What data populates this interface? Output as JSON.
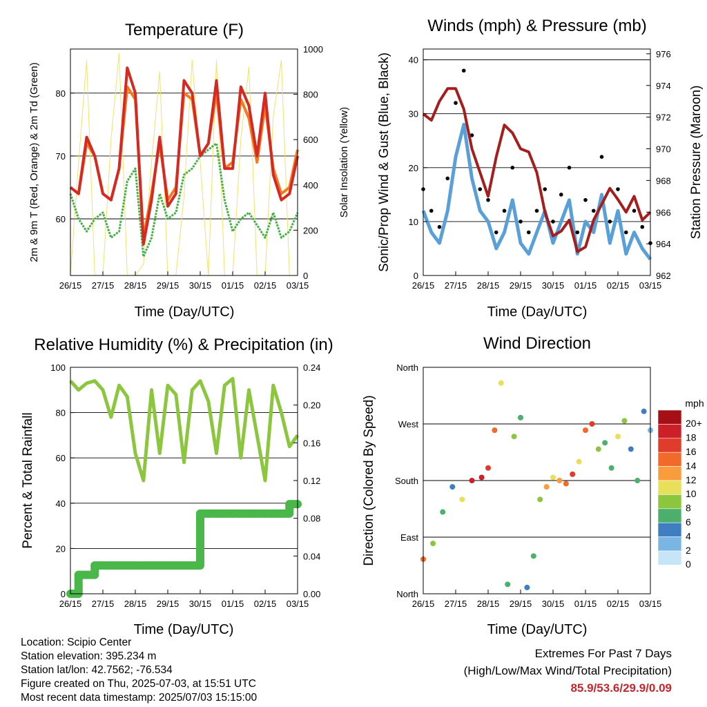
{
  "xticks": [
    "26/15",
    "27/15",
    "28/15",
    "29/15",
    "30/15",
    "01/15",
    "02/15",
    "03/15"
  ],
  "xlabel": "Time (Day/UTC)",
  "colors": {
    "red": "#d42a24",
    "orange": "#f47a22",
    "green": "#44b044",
    "yellow": "#f5e06a",
    "maroon": "#a51e1e",
    "black": "#000000",
    "blue": "#5aa0d8",
    "rh": "#8cc63f",
    "rain": "#49b749"
  },
  "panels": {
    "temp": {
      "title": "Temperature (F)",
      "ylabel": "2m & 9m T (Red, Orange) & 2m Td (Green)",
      "y2label": "Solar Insolation (Yellow)"
    },
    "wind": {
      "title": "Winds (mph) & Pressure (mb)",
      "ylabel": "Sonic/Prop Wind & Gust (Blue, Black)",
      "y2label": "Station Pressure (Maroon)"
    },
    "rh": {
      "title": "Relative Humidity (%) & Precipitation (in)",
      "ylabel": "Percent & Total Rainfall"
    },
    "dir": {
      "title": "Wind Direction",
      "ylabel": "Direction (Colored By Speed)",
      "ticks": [
        "North",
        "East",
        "South",
        "West",
        "North"
      ],
      "legend_title": "mph",
      "legend_labels": [
        "20+",
        "18",
        "16",
        "14",
        "12",
        "10",
        "8",
        "6",
        "4",
        "2",
        "0"
      ],
      "legend_colors": [
        "#a50f15",
        "#cb2027",
        "#e03b2b",
        "#f26a2a",
        "#f99d3c",
        "#e8e05a",
        "#8cc63f",
        "#4caf6c",
        "#3f7fc1",
        "#7ab6e4",
        "#c6e6f8"
      ]
    }
  },
  "info": {
    "location": "Location: Scipio Center",
    "elevation": "Station elevation: 395.234 m",
    "latlon": "Station lat/lon: 42.7562; -76.534",
    "created": "Figure created on Thu, 2025-07-03, at 15:51 UTC",
    "recent": "Most recent data timestamp: 2025/07/03 15:15:00"
  },
  "extremes": {
    "line1": "Extremes For Past 7 Days",
    "line2": "(High/Low/Max Wind/Total Precipitation)",
    "values": "85.9/53.6/29.9/0.09"
  },
  "chart_data": [
    {
      "type": "line",
      "title": "Temperature (F)",
      "xlabel": "Time (Day/UTC)",
      "ylabel": "2m & 9m T (Red, Orange) & 2m Td (Green)",
      "y2label": "Solar Insolation (Yellow)",
      "x": [
        0,
        0.25,
        0.5,
        0.75,
        1,
        1.25,
        1.5,
        1.75,
        2,
        2.25,
        2.5,
        2.75,
        3,
        3.25,
        3.5,
        3.75,
        4,
        4.25,
        4.5,
        4.75,
        5,
        5.25,
        5.5,
        5.75,
        6,
        6.25,
        6.5,
        6.75,
        7
      ],
      "ylim": [
        51,
        87
      ],
      "yticks": [
        60,
        70,
        80
      ],
      "y2lim": [
        0,
        1000
      ],
      "y2ticks": [
        0,
        200,
        400,
        600,
        800,
        1000
      ],
      "series": [
        {
          "name": "2m T",
          "color": "red",
          "axis": "left",
          "values": [
            65,
            64,
            73,
            70,
            64,
            63,
            68,
            84,
            80,
            56,
            63,
            73,
            62,
            64,
            82,
            80,
            70,
            72,
            82,
            68,
            68,
            81,
            78,
            70,
            80,
            67,
            63,
            64,
            70
          ]
        },
        {
          "name": "9m T",
          "color": "orange",
          "axis": "left",
          "values": [
            65,
            64,
            72,
            70,
            64,
            63,
            68,
            81,
            79,
            57,
            64,
            72,
            63,
            65,
            80,
            79,
            70,
            72,
            80,
            68,
            69,
            79,
            76,
            69,
            78,
            68,
            64,
            65,
            71
          ]
        },
        {
          "name": "2m Td",
          "color": "green",
          "axis": "left",
          "values": [
            64,
            60,
            58,
            60,
            61,
            57,
            58,
            66,
            68,
            54,
            57,
            64,
            60,
            61,
            67,
            68,
            70,
            71,
            72,
            63,
            58,
            60,
            61,
            59,
            57,
            61,
            57,
            58,
            61
          ]
        },
        {
          "name": "Solar",
          "color": "yellow",
          "axis": "right",
          "values": [
            0,
            500,
            950,
            0,
            0,
            600,
            980,
            0,
            0,
            50,
            500,
            900,
            0,
            0,
            350,
            950,
            500,
            0,
            950,
            0,
            0,
            600,
            920,
            0,
            0,
            700,
            950,
            0,
            0
          ]
        }
      ]
    },
    {
      "type": "scatter",
      "title": "Winds (mph) & Pressure (mb)",
      "xlabel": "Time (Day/UTC)",
      "ylabel": "Sonic/Prop Wind & Gust (Blue, Black)",
      "y2label": "Station Pressure (Maroon)",
      "x": [
        0,
        0.25,
        0.5,
        0.75,
        1,
        1.25,
        1.5,
        1.75,
        2,
        2.25,
        2.5,
        2.75,
        3,
        3.25,
        3.5,
        3.75,
        4,
        4.25,
        4.5,
        4.75,
        5,
        5.25,
        5.5,
        5.75,
        6,
        6.25,
        6.5,
        6.75,
        7
      ],
      "ylim": [
        0,
        42
      ],
      "yticks": [
        0,
        10,
        20,
        30,
        40
      ],
      "y2lim": [
        962,
        976.3
      ],
      "y2ticks": [
        962,
        964,
        966,
        968,
        970,
        972,
        974,
        976
      ],
      "series": [
        {
          "name": "Wind",
          "color": "blue",
          "axis": "left",
          "values": [
            12,
            8,
            6,
            12,
            22,
            28,
            18,
            12,
            10,
            5,
            8,
            14,
            6,
            4,
            8,
            12,
            6,
            10,
            14,
            4,
            10,
            8,
            15,
            6,
            12,
            4,
            8,
            5,
            3
          ]
        },
        {
          "name": "Gust",
          "color": "black",
          "axis": "left",
          "values": [
            16,
            12,
            9,
            18,
            32,
            38,
            26,
            16,
            14,
            8,
            12,
            20,
            10,
            8,
            12,
            16,
            10,
            15,
            20,
            8,
            14,
            12,
            22,
            10,
            16,
            8,
            12,
            9,
            6
          ]
        },
        {
          "name": "Pressure",
          "color": "maroon",
          "axis": "right",
          "values": [
            972.2,
            971.8,
            973.0,
            973.8,
            973.8,
            972.5,
            970.0,
            968.5,
            967.0,
            969.5,
            971.5,
            971.0,
            970.0,
            969.8,
            968.5,
            966.0,
            964.5,
            964.8,
            965.5,
            963.5,
            963.8,
            965.5,
            966.5,
            967.5,
            966.8,
            966.0,
            967.0,
            965.5,
            966.0
          ]
        }
      ]
    },
    {
      "type": "line",
      "title": "Relative Humidity (%) & Precipitation (in)",
      "xlabel": "Time (Day/UTC)",
      "ylabel": "Percent & Total Rainfall",
      "x": [
        0,
        0.25,
        0.5,
        0.75,
        1,
        1.25,
        1.5,
        1.75,
        2,
        2.25,
        2.5,
        2.75,
        3,
        3.25,
        3.5,
        3.75,
        4,
        4.25,
        4.5,
        4.75,
        5,
        5.25,
        5.5,
        5.75,
        6,
        6.25,
        6.5,
        6.75,
        7
      ],
      "ylim": [
        0,
        100
      ],
      "yticks": [
        0,
        20,
        40,
        60,
        80,
        100
      ],
      "y2lim": [
        0,
        0.24
      ],
      "y2ticks": [
        0,
        0.04,
        0.08,
        0.12,
        0.16,
        0.2,
        0.24
      ],
      "series": [
        {
          "name": "RH",
          "color": "rh",
          "axis": "left",
          "values": [
            94,
            90,
            93,
            94,
            90,
            78,
            92,
            87,
            62,
            50,
            90,
            62,
            92,
            88,
            58,
            90,
            94,
            85,
            62,
            92,
            95,
            60,
            90,
            70,
            50,
            92,
            80,
            65,
            70
          ]
        },
        {
          "name": "Rainfall",
          "color": "rain",
          "axis": "right",
          "values": [
            0,
            0.02,
            0.02,
            0.03,
            0.03,
            0.03,
            0.03,
            0.03,
            0.03,
            0.03,
            0.03,
            0.03,
            0.03,
            0.03,
            0.03,
            0.03,
            0.085,
            0.085,
            0.085,
            0.085,
            0.085,
            0.085,
            0.085,
            0.085,
            0.085,
            0.085,
            0.085,
            0.095,
            0.095
          ]
        }
      ]
    },
    {
      "type": "scatter",
      "title": "Wind Direction",
      "xlabel": "Time (Day/UTC)",
      "ylabel": "Direction (Colored By Speed)",
      "ylim": [
        0,
        360
      ],
      "yticks": [
        "North",
        "East",
        "South",
        "West",
        "North"
      ],
      "series": [
        {
          "name": "Direction",
          "x": [
            0,
            0.3,
            0.6,
            0.9,
            1.2,
            1.5,
            1.8,
            2.0,
            2.2,
            2.4,
            2.6,
            2.8,
            3.0,
            3.2,
            3.4,
            3.6,
            3.8,
            4.0,
            4.2,
            4.4,
            4.6,
            4.8,
            5.0,
            5.2,
            5.4,
            5.6,
            5.8,
            6.0,
            6.2,
            6.4,
            6.6,
            6.8,
            7.0
          ],
          "values": [
            55,
            80,
            130,
            170,
            150,
            180,
            185,
            200,
            260,
            335,
            15,
            250,
            280,
            10,
            60,
            150,
            170,
            185,
            180,
            175,
            190,
            210,
            260,
            270,
            230,
            240,
            200,
            250,
            275,
            230,
            180,
            290,
            260
          ],
          "speeds": [
            14,
            8,
            6,
            4,
            10,
            18,
            18,
            16,
            14,
            10,
            6,
            8,
            6,
            4,
            6,
            8,
            12,
            10,
            12,
            14,
            16,
            10,
            14,
            16,
            8,
            6,
            6,
            10,
            8,
            4,
            6,
            4,
            2
          ]
        }
      ]
    }
  ]
}
